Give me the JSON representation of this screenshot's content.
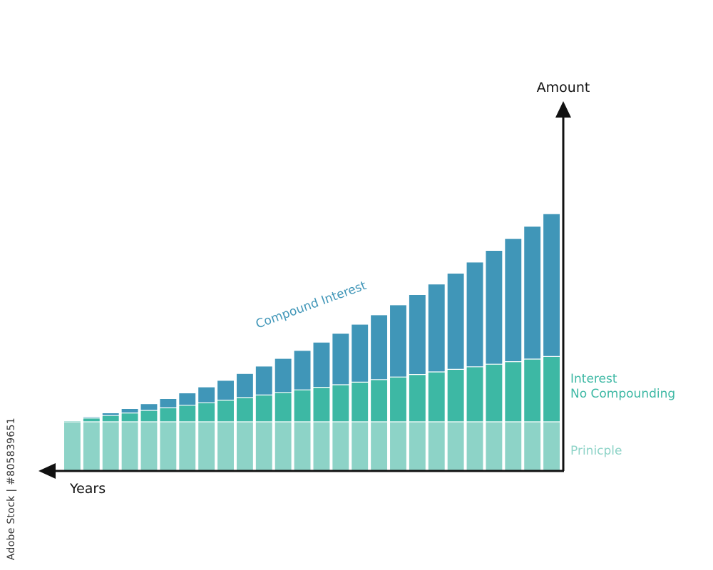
{
  "chart_data": {
    "type": "bar",
    "stacked": true,
    "title": "",
    "xlabel": "Years",
    "ylabel": "Amount",
    "x_direction": "right-to-left",
    "bar_count": 26,
    "ylim": [
      0,
      100
    ],
    "grid": false,
    "legend": "direct-labels-right",
    "series": [
      {
        "name": "Prinicple",
        "color": "#8dd3c7",
        "values": [
          17,
          17,
          17,
          17,
          17,
          17,
          17,
          17,
          17,
          17,
          17,
          17,
          17,
          17,
          17,
          17,
          17,
          17,
          17,
          17,
          17,
          17,
          17,
          17,
          17,
          17
        ]
      },
      {
        "name": "Interest\nNo Compounding",
        "label_lines": [
          "Interest",
          "No Compounding"
        ],
        "color": "#3db8a4",
        "values": [
          0.4,
          1.3,
          2.2,
          3.1,
          4.0,
          4.9,
          5.8,
          6.7,
          7.6,
          8.5,
          9.4,
          10.3,
          11.2,
          12.1,
          13.0,
          13.9,
          14.8,
          15.7,
          16.6,
          17.5,
          18.4,
          19.3,
          20.2,
          21.1,
          22.0,
          22.9
        ]
      },
      {
        "name": "Compound Interest",
        "color": "#4096b8",
        "values": [
          0.0,
          0.3,
          0.8,
          1.4,
          2.2,
          3.1,
          4.2,
          5.4,
          6.8,
          8.3,
          10.0,
          11.8,
          13.7,
          15.7,
          17.9,
          20.2,
          22.6,
          25.2,
          27.9,
          30.7,
          33.6,
          36.6,
          39.8,
          43.1,
          46.5,
          50.0
        ]
      }
    ]
  },
  "colors": {
    "axis": "#111111",
    "compound_label": "#4096b8",
    "simple_label": "#3db8a4",
    "principle_label": "#8dd3c7"
  },
  "watermark": {
    "text": "Adobe Stock | #805839651"
  }
}
